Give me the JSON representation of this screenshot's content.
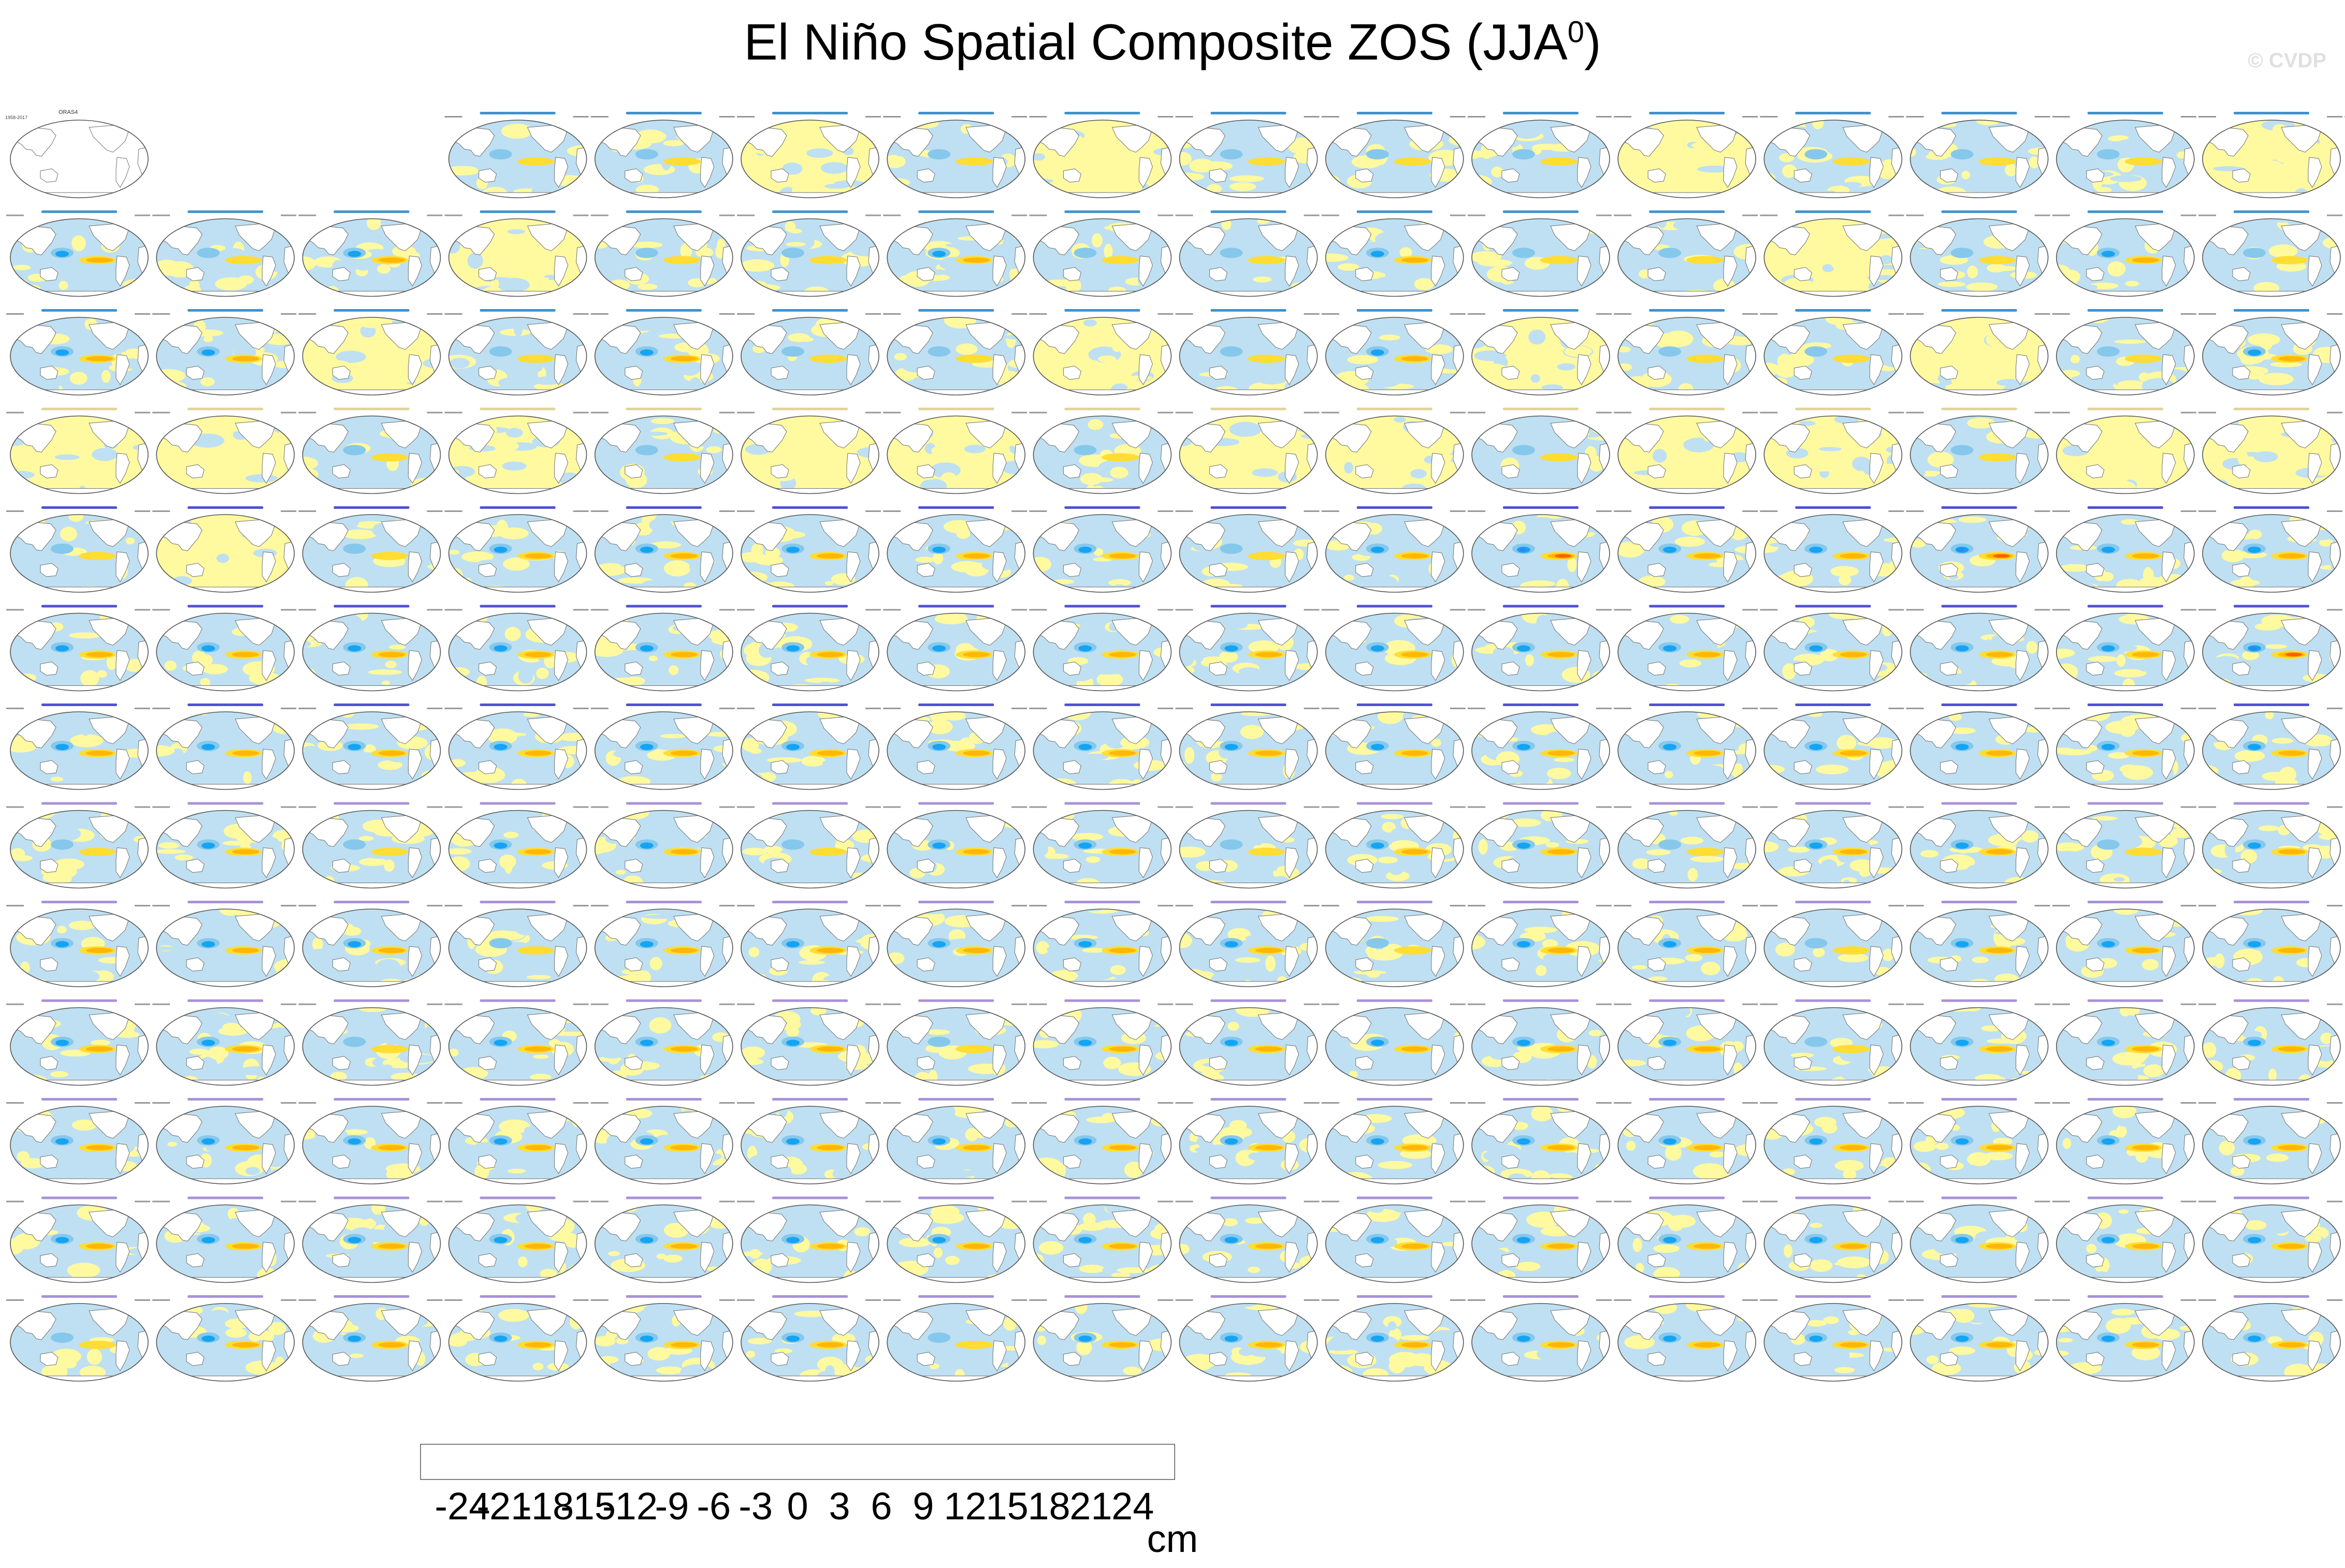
{
  "title": {
    "main": "El Niño Spatial Composite ZOS (JJA",
    "superscript": "0",
    "close": ")"
  },
  "watermark": "© CVDP",
  "chart_data": {
    "type": "map_panels",
    "observation_panel": {
      "name": "ORAS4",
      "years": "1958-2017"
    },
    "map_colors": {
      "land": "#ffffff",
      "coast": "#6f6f6f",
      "outline": "#555555",
      "header_text": "#444444",
      "access_title": "#1f7fc4",
      "cesm1_title": "#3333cc",
      "cesm2_title": "#9a7fd0",
      "faint_title": "#d8cc8a"
    },
    "rows": [
      {
        "cells": 15,
        "title_group": "access",
        "offset": 3,
        "patterns": [
          "bn",
          "bn",
          "yn",
          "bn",
          "yn",
          "bn",
          "bn",
          "bn",
          "yn",
          "bn",
          "bn",
          "bn",
          "yn",
          "bn",
          "bn"
        ]
      },
      {
        "cells": 16,
        "title_group": "access",
        "patterns": [
          "bs",
          "bn",
          "bs",
          "yn",
          "bn",
          "bn",
          "bs",
          "bn",
          "bn",
          "bs",
          "bn",
          "bn",
          "yn",
          "bn",
          "bs",
          "bn"
        ]
      },
      {
        "cells": 16,
        "title_group": "access",
        "patterns": [
          "bs",
          "bs",
          "yn",
          "bn",
          "bs",
          "bn",
          "bn",
          "yn",
          "bn",
          "bs",
          "yn",
          "bn",
          "bn",
          "yn",
          "bn",
          "bs"
        ]
      },
      {
        "cells": 16,
        "title_group": "faint",
        "patterns": [
          "yn",
          "yn",
          "bn",
          "yn",
          "bn",
          "yn",
          "yn",
          "bn",
          "yn",
          "yn",
          "bn",
          "yn",
          "yn",
          "bn",
          "yn",
          "yn"
        ]
      },
      {
        "cells": 16,
        "title_group": "cesm1",
        "patterns": [
          "bn",
          "yn",
          "bn",
          "bs",
          "bs",
          "bs",
          "bs",
          "bs",
          "bn",
          "bs",
          "bst",
          "bs",
          "bs",
          "bst",
          "bs",
          "bs"
        ]
      },
      {
        "cells": 16,
        "title_group": "cesm1",
        "patterns": [
          "bs",
          "bs",
          "bs",
          "bs",
          "bs",
          "bs",
          "bs",
          "bs",
          "bs",
          "bs",
          "bs",
          "bs",
          "bs",
          "bs",
          "bs",
          "bst"
        ]
      },
      {
        "cells": 16,
        "title_group": "cesm1",
        "patterns": [
          "bs",
          "bs",
          "bs",
          "bs",
          "bs",
          "bs",
          "bs",
          "bs",
          "bs",
          "bs",
          "bs",
          "bs",
          "bs",
          "bs",
          "bs",
          "bs"
        ]
      },
      {
        "cells": 16,
        "title_group": "cesm2",
        "patterns": [
          "bn",
          "bs",
          "bn",
          "bs",
          "bs",
          "bn",
          "bs",
          "bs",
          "bn",
          "bs",
          "bs",
          "bn",
          "bs",
          "bs",
          "bn",
          "bs"
        ]
      },
      {
        "cells": 16,
        "title_group": "cesm2",
        "patterns": [
          "bs",
          "bs",
          "bs",
          "bn",
          "bs",
          "bs",
          "bs",
          "bs",
          "bs",
          "bn",
          "bs",
          "bs",
          "bn",
          "bs",
          "bs",
          "bs"
        ]
      },
      {
        "cells": 16,
        "title_group": "cesm2",
        "patterns": [
          "bs",
          "bs",
          "bn",
          "bs",
          "bs",
          "bs",
          "bn",
          "bs",
          "bs",
          "bs",
          "bs",
          "bs",
          "bn",
          "bs",
          "bs",
          "bs"
        ]
      },
      {
        "cells": 16,
        "title_group": "cesm2",
        "patterns": [
          "bs",
          "bs",
          "bs",
          "bs",
          "bs",
          "bs",
          "bs",
          "bs",
          "bs",
          "bs",
          "bs",
          "bs",
          "bs",
          "bs",
          "bs",
          "bs"
        ]
      },
      {
        "cells": 16,
        "title_group": "cesm2",
        "patterns": [
          "bs",
          "bs",
          "bs",
          "bs",
          "bs",
          "bs",
          "bs",
          "bs",
          "bs",
          "bs",
          "bs",
          "bs",
          "bs",
          "bs",
          "bs",
          "bs"
        ]
      },
      {
        "cells": 16,
        "title_group": "cesm2",
        "patterns": [
          "bn",
          "bs",
          "bs",
          "bs",
          "bs",
          "bs",
          "bn",
          "bs",
          "bs",
          "bs",
          "bs",
          "bs",
          "bs",
          "bs",
          "bs",
          "bs"
        ]
      }
    ],
    "colorbar": {
      "unit": "cm",
      "tick_labels": [
        "-24",
        "-21",
        "-18",
        "-15",
        "-12",
        "-9",
        "-6",
        "-3",
        "0",
        "3",
        "6",
        "9",
        "12",
        "15",
        "18",
        "21",
        "24"
      ],
      "colors": [
        "#7f2fe8",
        "#2a0cf2",
        "#2037e8",
        "#3f66dd",
        "#2e86f4",
        "#14a4f3",
        "#2bc2f5",
        "#86c8ec",
        "#bfe0f2",
        "#fff9a0",
        "#ffdd33",
        "#ffb705",
        "#ff8800",
        "#ff5f00",
        "#ff1a00",
        "#db0000",
        "#d0292b",
        "#ffb3b3"
      ]
    }
  }
}
